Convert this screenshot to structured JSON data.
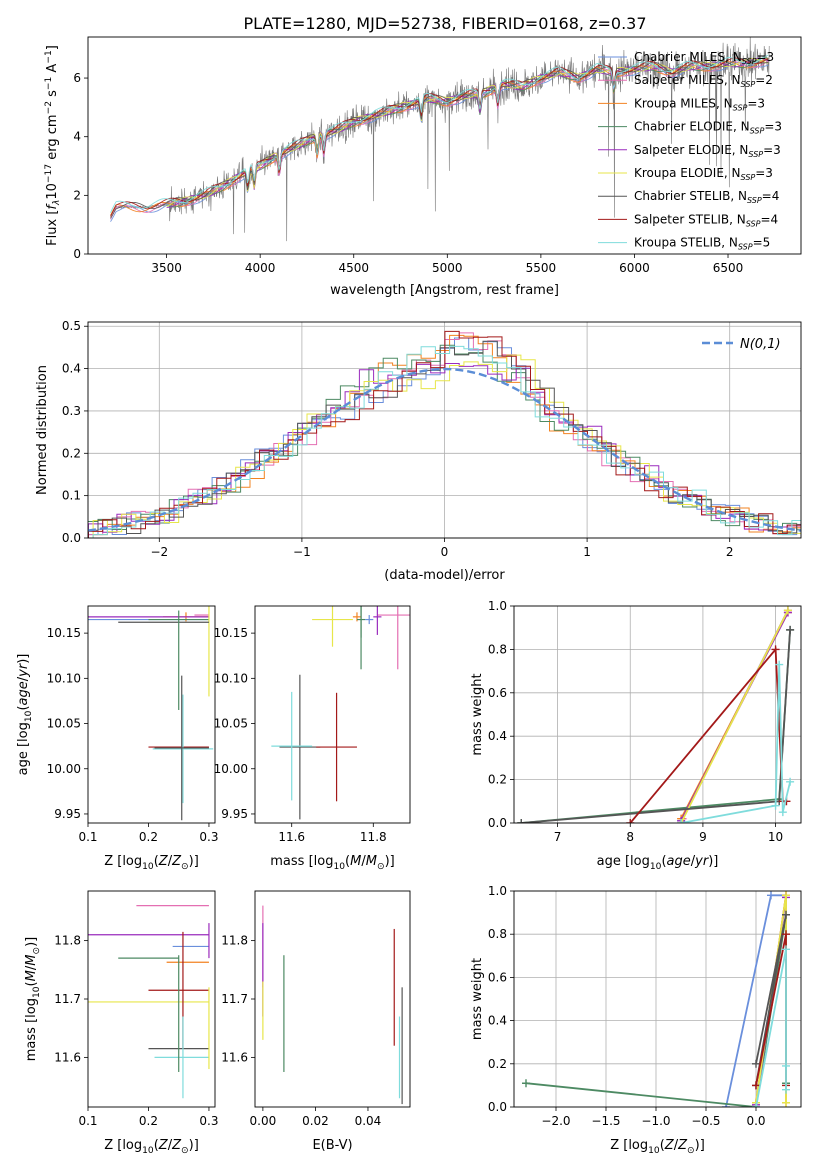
{
  "title": "PLATE=1280, MJD=52738, FIBERID=0168, z=0.37",
  "colors": {
    "Chabrier MILES": "#6a8fdc",
    "Salpeter MILES": "#e46fb2",
    "Kroupa MILES": "#f28322",
    "Chabrier ELODIE": "#4d8a63",
    "Salpeter ELODIE": "#9a2bbd",
    "Kroupa ELODIE": "#e7e64a",
    "Chabrier STELIB": "#555555",
    "Salpeter STELIB": "#a31919",
    "Kroupa STELIB": "#7fdcdc"
  },
  "chart_data": [
    {
      "id": "spectrum",
      "type": "line",
      "xlabel": "wavelength [Angstrom, rest frame]",
      "ylabel": "Flux [f_λ 10^{-17} erg cm^{-2} s^{-1} A^{-1}]",
      "xlim": [
        3080,
        6890
      ],
      "ylim": [
        0,
        7.4
      ],
      "xticks": [
        3500,
        4000,
        4500,
        5000,
        5500,
        6000,
        6500
      ],
      "yticks": [
        0,
        2,
        4,
        6
      ],
      "legend_position": "top-right",
      "legend": [
        {
          "text": "Chabrier MILES, N_{SSP}=3",
          "model": "Chabrier MILES"
        },
        {
          "text": "Salpeter MILES, N_{SSP}=2",
          "model": "Salpeter MILES"
        },
        {
          "text": "Kroupa MILES, N_{SSP}=3",
          "model": "Kroupa MILES"
        },
        {
          "text": "Chabrier ELODIE, N_{SSP}=3",
          "model": "Chabrier ELODIE"
        },
        {
          "text": "Salpeter ELODIE, N_{SSP}=3",
          "model": "Salpeter ELODIE"
        },
        {
          "text": "Kroupa ELODIE, N_{SSP}=3",
          "model": "Kroupa ELODIE"
        },
        {
          "text": "Chabrier STELIB, N_{SSP}=4",
          "model": "Chabrier STELIB"
        },
        {
          "text": "Salpeter STELIB, N_{SSP}=4",
          "model": "Salpeter STELIB"
        },
        {
          "text": "Kroupa STELIB, N_{SSP}=5",
          "model": "Kroupa STELIB"
        }
      ],
      "continuum": {
        "x": [
          3200,
          3230,
          3300,
          3400,
          3500,
          3600,
          3700,
          3800,
          3900,
          4000,
          4100,
          4200,
          4300,
          4400,
          4500,
          4600,
          4700,
          4800,
          4900,
          5000,
          5100,
          5200,
          5300,
          5400,
          5500,
          5600,
          5700,
          5800,
          5900,
          6000,
          6100,
          6200,
          6300,
          6400,
          6500,
          6600,
          6700
        ],
        "y": [
          1.3,
          1.6,
          1.6,
          1.6,
          1.7,
          1.8,
          2.0,
          2.3,
          2.7,
          3.0,
          3.4,
          3.7,
          4.0,
          4.2,
          4.5,
          4.7,
          4.9,
          5.1,
          5.3,
          5.2,
          5.4,
          5.5,
          5.8,
          5.7,
          6.0,
          6.2,
          6.0,
          6.3,
          6.2,
          6.3,
          6.4,
          6.2,
          6.4,
          6.4,
          6.5,
          6.5,
          6.6
        ]
      },
      "noise_x_range": [
        3500,
        6720
      ],
      "noise_amplitude": 0.9
    },
    {
      "id": "residuals",
      "type": "histogram",
      "xlabel": "(data-model)/error",
      "ylabel": "Normed distribution",
      "xlim": [
        -2.5,
        2.5
      ],
      "ylim": [
        0,
        0.51
      ],
      "xticks": [
        -2,
        -1,
        0,
        1,
        2
      ],
      "yticks": [
        0,
        0.1,
        0.2,
        0.3,
        0.4,
        0.5
      ],
      "grid": true,
      "bin_width": 0.1,
      "reference": {
        "label": "N(0,1)",
        "mean": 0,
        "sigma": 1,
        "color": "#5b8dd6",
        "style": "dashed"
      },
      "legend_position": "top-right"
    },
    {
      "id": "Z-age",
      "type": "errorbar",
      "xlabel": "Z [log10(Z/Z☉)]",
      "ylabel": "age [log10(age/yr)]",
      "xlim": [
        0.1,
        0.31
      ],
      "ylim": [
        9.94,
        10.18
      ],
      "xticks": [
        0.1,
        0.2,
        0.3
      ],
      "yticks": [
        9.95,
        10.0,
        10.05,
        10.1,
        10.15
      ],
      "points": [
        {
          "model": "Chabrier MILES",
          "x": 0.2,
          "y": 10.165,
          "xerr": 0.1,
          "yerr": 0.0
        },
        {
          "model": "Salpeter MILES",
          "x": 0.288,
          "y": 10.17,
          "xerr": 0.012,
          "yerr": 0.0
        },
        {
          "model": "Kroupa MILES",
          "x": 0.262,
          "y": 10.168,
          "xerr": 0.038,
          "yerr": 0.005
        },
        {
          "model": "Chabrier ELODIE",
          "x": 0.25,
          "y": 10.165,
          "xerr": 0.05,
          "yerr": 0.0
        },
        {
          "model": "Salpeter ELODIE",
          "x": 0.2,
          "y": 10.168,
          "xerr": 0.1,
          "yerr": 0.0
        },
        {
          "model": "Kroupa ELODIE",
          "x": 0.3,
          "y": 10.13,
          "xerr": 0.0,
          "yerr": 0.05
        },
        {
          "model": "Chabrier STELIB",
          "x": 0.225,
          "y": 10.162,
          "xerr": 0.075,
          "yerr": 0.0
        },
        {
          "model": "Salpeter STELIB",
          "x": 0.25,
          "y": 10.024,
          "xerr": 0.05,
          "yerr": 0.0
        },
        {
          "model": "Kroupa STELIB",
          "x": 0.257,
          "y": 10.022,
          "xerr": 0.05,
          "yerr": 0.06
        },
        {
          "model": "Chabrier ELODIE",
          "x": 0.25,
          "y": 10.12,
          "xerr": 0.0,
          "yerr": 0.055
        },
        {
          "model": "Chabrier STELIB",
          "x": 0.255,
          "y": 10.023,
          "xerr": 0.045,
          "yerr": 0.08
        }
      ]
    },
    {
      "id": "mass-age",
      "type": "errorbar",
      "xlabel": "mass [log10(M/M☉)]",
      "ylabel": "",
      "xlim": [
        11.51,
        11.89
      ],
      "ylim": [
        9.94,
        10.18
      ],
      "xticks": [
        11.6,
        11.8
      ],
      "yticks": [
        9.95,
        10.0,
        10.05,
        10.1,
        10.15
      ],
      "points": [
        {
          "model": "Chabrier MILES",
          "x": 11.79,
          "y": 10.165,
          "xerr": 0.01,
          "yerr": 0.005
        },
        {
          "model": "Salpeter MILES",
          "x": 11.86,
          "y": 10.17,
          "xerr": 0.05,
          "yerr": 0.06
        },
        {
          "model": "Kroupa MILES",
          "x": 11.76,
          "y": 10.168,
          "xerr": 0.01,
          "yerr": 0.005
        },
        {
          "model": "Chabrier ELODIE",
          "x": 11.77,
          "y": 10.165,
          "xerr": 0.01,
          "yerr": 0.055
        },
        {
          "model": "Salpeter ELODIE",
          "x": 11.81,
          "y": 10.168,
          "xerr": 0.01,
          "yerr": 0.02
        },
        {
          "model": "Kroupa ELODIE",
          "x": 11.7,
          "y": 10.165,
          "xerr": 0.05,
          "yerr": 0.03
        },
        {
          "model": "Chabrier STELIB",
          "x": 11.62,
          "y": 10.024,
          "xerr": 0.05,
          "yerr": 0.08
        },
        {
          "model": "Salpeter STELIB",
          "x": 11.71,
          "y": 10.024,
          "xerr": 0.05,
          "yerr": 0.06
        },
        {
          "model": "Kroupa STELIB",
          "x": 11.6,
          "y": 10.025,
          "xerr": 0.05,
          "yerr": 0.06
        },
        {
          "model": "Chabrier ELODIE",
          "x": 11.77,
          "y": 10.165,
          "xerr": 0.0,
          "yerr": 0.02
        }
      ]
    },
    {
      "id": "age-weight",
      "type": "line",
      "xlabel": "age [log10(age/yr)]",
      "ylabel": "mass weight",
      "xlim": [
        6.4,
        10.35
      ],
      "ylim": [
        0,
        1.0
      ],
      "xticks": [
        7,
        8,
        9,
        10
      ],
      "yticks": [
        0,
        0.2,
        0.4,
        0.6,
        0.8,
        1.0
      ],
      "grid": true,
      "series": [
        {
          "model": "Chabrier MILES",
          "x": [
            8.7,
            10.17
          ],
          "y": [
            0.01,
            0.98
          ]
        },
        {
          "model": "Salpeter MILES",
          "x": [
            8.72,
            10.17
          ],
          "y": [
            0.02,
            0.98
          ]
        },
        {
          "model": "Kroupa MILES",
          "x": [
            8.7,
            10.17
          ],
          "y": [
            0.02,
            0.97
          ]
        },
        {
          "model": "Chabrier ELODIE",
          "x": [
            6.5,
            10.05,
            10.2,
            10.05
          ],
          "y": [
            0.0,
            0.11,
            0.89,
            0.11
          ]
        },
        {
          "model": "Salpeter ELODIE",
          "x": [
            8.7,
            10.17
          ],
          "y": [
            0.01,
            0.97
          ]
        },
        {
          "model": "Kroupa ELODIE",
          "x": [
            8.7,
            10.17
          ],
          "y": [
            0.0,
            0.98
          ]
        },
        {
          "model": "Chabrier STELIB",
          "x": [
            6.5,
            10.05,
            10.2
          ],
          "y": [
            0.0,
            0.1,
            0.89
          ]
        },
        {
          "model": "Salpeter STELIB",
          "x": [
            8.0,
            10.0,
            10.1,
            10.15
          ],
          "y": [
            0.0,
            0.8,
            0.1,
            0.1
          ]
        },
        {
          "model": "Kroupa STELIB",
          "x": [
            8.7,
            10.0,
            10.05,
            10.1,
            10.2
          ],
          "y": [
            0.0,
            0.08,
            0.73,
            0.05,
            0.19
          ]
        }
      ]
    },
    {
      "id": "Z-mass",
      "type": "errorbar",
      "xlabel": "Z [log10(Z/Z☉)]",
      "ylabel": "mass [log10(M/M☉)]",
      "xlim": [
        0.1,
        0.31
      ],
      "ylim": [
        11.515,
        11.885
      ],
      "xticks": [
        0.1,
        0.2,
        0.3
      ],
      "yticks": [
        11.6,
        11.7,
        11.8
      ],
      "points": [
        {
          "model": "Chabrier MILES",
          "x": 0.27,
          "y": 11.79,
          "xerr": 0.03,
          "yerr": 0.0
        },
        {
          "model": "Salpeter MILES",
          "x": 0.24,
          "y": 11.86,
          "xerr": 0.06,
          "yerr": 0.0
        },
        {
          "model": "Kroupa MILES",
          "x": 0.265,
          "y": 11.763,
          "xerr": 0.035,
          "yerr": 0.0
        },
        {
          "model": "Chabrier ELODIE",
          "x": 0.2,
          "y": 11.77,
          "xerr": 0.05,
          "yerr": 0.0
        },
        {
          "model": "Salpeter ELODIE",
          "x": 0.2,
          "y": 11.81,
          "xerr": 0.1,
          "yerr": 0.0
        },
        {
          "model": "Kroupa ELODIE",
          "x": 0.2,
          "y": 11.695,
          "xerr": 0.1,
          "yerr": 0.0
        },
        {
          "model": "Chabrier STELIB",
          "x": 0.25,
          "y": 11.615,
          "xerr": 0.05,
          "yerr": 0.0
        },
        {
          "model": "Salpeter STELIB",
          "x": 0.25,
          "y": 11.715,
          "xerr": 0.05,
          "yerr": 0.0
        },
        {
          "model": "Kroupa STELIB",
          "x": 0.255,
          "y": 11.6,
          "xerr": 0.045,
          "yerr": 0.0
        },
        {
          "model": "Salpeter ELODIE",
          "x": 0.3,
          "y": 11.8,
          "xerr": 0.0,
          "yerr": 0.03
        },
        {
          "model": "Chabrier ELODIE",
          "x": 0.25,
          "y": 11.675,
          "xerr": 0.0,
          "yerr": 0.1
        },
        {
          "model": "Salpeter STELIB",
          "x": 0.257,
          "y": 11.715,
          "xerr": 0.0,
          "yerr": 0.1
        },
        {
          "model": "Kroupa STELIB",
          "x": 0.257,
          "y": 11.6,
          "xerr": 0.0,
          "yerr": 0.07
        },
        {
          "model": "Kroupa ELODIE",
          "x": 0.3,
          "y": 11.65,
          "xerr": 0.0,
          "yerr": 0.07
        }
      ]
    },
    {
      "id": "ebv-mass",
      "type": "errorbar",
      "xlabel": "E(B-V)",
      "ylabel": "",
      "xlim": [
        -0.003,
        0.056
      ],
      "ylim": [
        11.515,
        11.885
      ],
      "xticks": [
        0.0,
        0.02,
        0.04
      ],
      "yticks": [
        11.6,
        11.7,
        11.8
      ],
      "points": [
        {
          "model": "Salpeter MILES",
          "x": 0.0,
          "y": 11.79,
          "xerr": 0.0,
          "yerr": 0.07
        },
        {
          "model": "Salpeter ELODIE",
          "x": 0.0,
          "y": 11.75,
          "xerr": 0.0,
          "yerr": 0.08
        },
        {
          "model": "Kroupa ELODIE",
          "x": 0.0,
          "y": 11.68,
          "xerr": 0.0,
          "yerr": 0.05
        },
        {
          "model": "Chabrier ELODIE",
          "x": 0.008,
          "y": 11.675,
          "xerr": 0.0,
          "yerr": 0.1
        },
        {
          "model": "Salpeter STELIB",
          "x": 0.05,
          "y": 11.72,
          "xerr": 0.0,
          "yerr": 0.1
        },
        {
          "model": "Chabrier STELIB",
          "x": 0.053,
          "y": 11.62,
          "xerr": 0.0,
          "yerr": 0.1
        },
        {
          "model": "Kroupa STELIB",
          "x": 0.052,
          "y": 11.6,
          "xerr": 0.0,
          "yerr": 0.07
        }
      ]
    },
    {
      "id": "Z-weight",
      "type": "line",
      "xlabel": "Z [log10(Z/Z☉)]",
      "ylabel": "mass weight",
      "xlim": [
        -2.42,
        0.45
      ],
      "ylim": [
        0,
        1.0
      ],
      "xticks": [
        -2.0,
        -1.5,
        -1.0,
        -0.5,
        0.0
      ],
      "yticks": [
        0,
        0.2,
        0.4,
        0.6,
        0.8,
        1.0
      ],
      "grid": true,
      "series": [
        {
          "model": "Chabrier MILES",
          "x": [
            -0.3,
            0.15,
            0.3
          ],
          "y": [
            0.0,
            0.98,
            0.98
          ]
        },
        {
          "model": "Salpeter MILES",
          "x": [
            0.0,
            0.3
          ],
          "y": [
            0.02,
            0.98
          ]
        },
        {
          "model": "Kroupa MILES",
          "x": [
            0.0,
            0.3,
            0.3
          ],
          "y": [
            0.02,
            0.98,
            0.02
          ]
        },
        {
          "model": "Chabrier ELODIE",
          "x": [
            -2.3,
            0.0,
            0.3,
            0.3
          ],
          "y": [
            0.11,
            0.0,
            0.89,
            0.11
          ]
        },
        {
          "model": "Salpeter ELODIE",
          "x": [
            0.0,
            0.3
          ],
          "y": [
            0.01,
            0.97
          ]
        },
        {
          "model": "Kroupa ELODIE",
          "x": [
            0.0,
            0.3,
            0.3
          ],
          "y": [
            0.02,
            0.98,
            0.02
          ]
        },
        {
          "model": "Chabrier STELIB",
          "x": [
            0.0,
            0.3,
            0.0
          ],
          "y": [
            0.2,
            0.89,
            0.1
          ]
        },
        {
          "model": "Salpeter STELIB",
          "x": [
            0.0,
            0.3,
            0.3
          ],
          "y": [
            0.1,
            0.8,
            0.1
          ]
        },
        {
          "model": "Kroupa STELIB",
          "x": [
            0.0,
            0.3,
            0.3,
            0.3
          ],
          "y": [
            0.0,
            0.73,
            0.08,
            0.19
          ]
        }
      ]
    }
  ]
}
